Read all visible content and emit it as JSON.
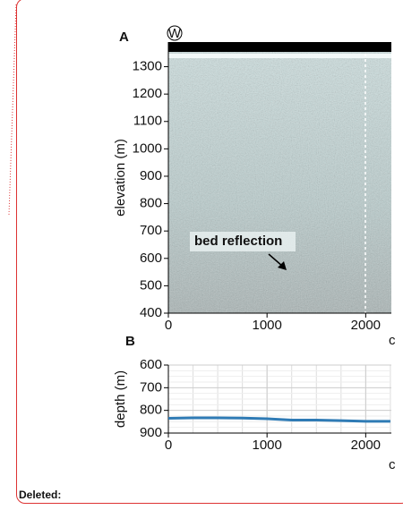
{
  "chart_data": [
    {
      "type": "image",
      "panel_label": "A",
      "marker": "W",
      "ylabel": "elevation (m)",
      "xlabel": "c",
      "xlim": [
        0,
        2260
      ],
      "xticks": [
        0,
        1000,
        2000
      ],
      "ylim": [
        400,
        1390
      ],
      "yticks": [
        400,
        500,
        600,
        700,
        800,
        900,
        1000,
        1100,
        1200,
        1300
      ],
      "annotation": "bed reflection"
    },
    {
      "type": "line",
      "panel_label": "B",
      "ylabel": "depth (m)",
      "xlabel": "c",
      "xlim": [
        0,
        2260
      ],
      "xticks": [
        0,
        1000,
        2000
      ],
      "ylim": [
        900,
        600
      ],
      "yticks": [
        600,
        700,
        800,
        900
      ],
      "grid": true,
      "x": [
        0,
        250,
        500,
        750,
        1000,
        1250,
        1500,
        1750,
        2000,
        2250
      ],
      "series": [
        {
          "color": "#2f7bb5",
          "values": [
            835,
            833,
            833,
            834,
            837,
            843,
            843,
            845,
            848,
            848
          ]
        }
      ]
    }
  ],
  "comment": {
    "label": "Deleted:"
  }
}
